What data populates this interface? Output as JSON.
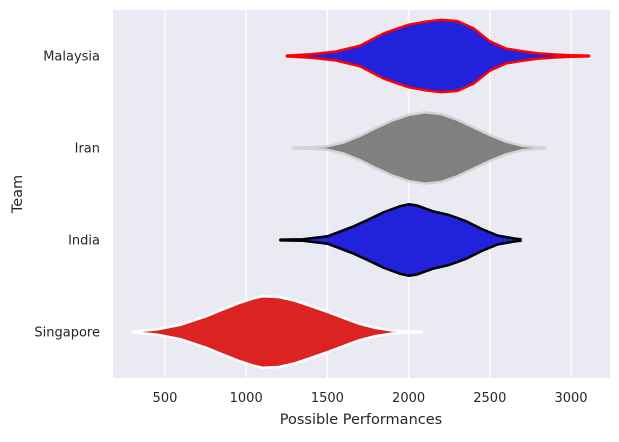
{
  "chart_data": {
    "type": "violin",
    "orientation": "horizontal",
    "xlabel": "Possible Performances",
    "ylabel": "Team",
    "xlim": [
      180,
      3240
    ],
    "xticks": [
      500,
      1000,
      1500,
      2000,
      2500,
      3000
    ],
    "grid": true,
    "series": [
      {
        "name": "Malaysia",
        "fill": "#2222dd",
        "edge": "#ff0000",
        "range": [
          1250,
          3110
        ],
        "profile": [
          [
            1250,
            0.01
          ],
          [
            1400,
            0.05
          ],
          [
            1550,
            0.12
          ],
          [
            1700,
            0.28
          ],
          [
            1850,
            0.62
          ],
          [
            2000,
            0.85
          ],
          [
            2100,
            0.93
          ],
          [
            2200,
            0.98
          ],
          [
            2300,
            0.95
          ],
          [
            2400,
            0.75
          ],
          [
            2500,
            0.4
          ],
          [
            2600,
            0.2
          ],
          [
            2700,
            0.13
          ],
          [
            2800,
            0.07
          ],
          [
            2900,
            0.04
          ],
          [
            3000,
            0.02
          ],
          [
            3110,
            0.01
          ]
        ]
      },
      {
        "name": "Iran",
        "fill": "#808080",
        "edge": "#d3d3d3",
        "range": [
          1290,
          2840
        ],
        "profile": [
          [
            1290,
            0.01
          ],
          [
            1400,
            0.02
          ],
          [
            1500,
            0.05
          ],
          [
            1600,
            0.15
          ],
          [
            1700,
            0.33
          ],
          [
            1800,
            0.55
          ],
          [
            1900,
            0.75
          ],
          [
            2000,
            0.9
          ],
          [
            2100,
            0.97
          ],
          [
            2200,
            0.92
          ],
          [
            2300,
            0.77
          ],
          [
            2400,
            0.56
          ],
          [
            2500,
            0.35
          ],
          [
            2600,
            0.17
          ],
          [
            2700,
            0.06
          ],
          [
            2800,
            0.02
          ],
          [
            2840,
            0.01
          ]
        ]
      },
      {
        "name": "India",
        "fill": "#2222dd",
        "edge": "#000000",
        "range": [
          1210,
          2690
        ],
        "profile": [
          [
            1210,
            0.01
          ],
          [
            1350,
            0.02
          ],
          [
            1500,
            0.1
          ],
          [
            1650,
            0.35
          ],
          [
            1750,
            0.55
          ],
          [
            1850,
            0.76
          ],
          [
            1950,
            0.92
          ],
          [
            2000,
            0.97
          ],
          [
            2050,
            0.94
          ],
          [
            2150,
            0.78
          ],
          [
            2250,
            0.68
          ],
          [
            2350,
            0.52
          ],
          [
            2450,
            0.3
          ],
          [
            2550,
            0.12
          ],
          [
            2650,
            0.04
          ],
          [
            2690,
            0.02
          ]
        ]
      },
      {
        "name": "Singapore",
        "fill": "#dd2222",
        "edge": "#ffffff",
        "range": [
          300,
          2080
        ],
        "profile": [
          [
            300,
            0.01
          ],
          [
            450,
            0.07
          ],
          [
            600,
            0.2
          ],
          [
            750,
            0.42
          ],
          [
            850,
            0.6
          ],
          [
            950,
            0.78
          ],
          [
            1050,
            0.92
          ],
          [
            1100,
            0.97
          ],
          [
            1200,
            0.95
          ],
          [
            1300,
            0.85
          ],
          [
            1400,
            0.7
          ],
          [
            1500,
            0.55
          ],
          [
            1600,
            0.38
          ],
          [
            1700,
            0.22
          ],
          [
            1800,
            0.11
          ],
          [
            1900,
            0.04
          ],
          [
            2000,
            0.02
          ],
          [
            2080,
            0.01
          ]
        ]
      }
    ]
  }
}
